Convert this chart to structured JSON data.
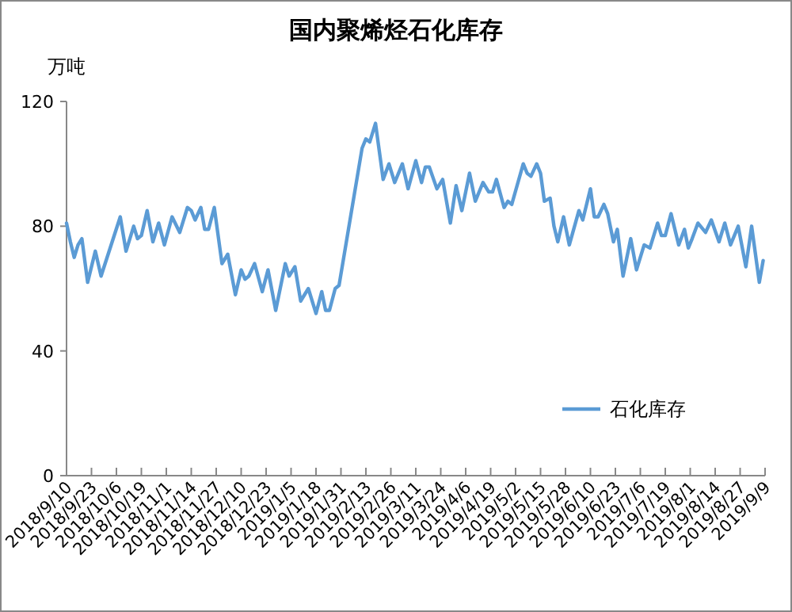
{
  "chart_data": {
    "type": "line",
    "title": "国内聚烯烃石化库存",
    "ylabel": "万吨",
    "legend": "bottom right",
    "xlim": [
      "2018-09-10",
      "2019-09-09"
    ],
    "xticks": [
      {
        "value": "2018-09-10",
        "label": "2018/9/10"
      },
      {
        "value": "2018-09-23",
        "label": "2018/9/23"
      },
      {
        "value": "2018-10-06",
        "label": "2018/10/6"
      },
      {
        "value": "2018-10-19",
        "label": "2018/10/19"
      },
      {
        "value": "2018-11-01",
        "label": "2018/11/1"
      },
      {
        "value": "2018-11-14",
        "label": "2018/11/14"
      },
      {
        "value": "2018-11-27",
        "label": "2018/11/27"
      },
      {
        "value": "2018-12-10",
        "label": "2018/12/10"
      },
      {
        "value": "2018-12-23",
        "label": "2018/12/23"
      },
      {
        "value": "2019-01-05",
        "label": "2019/1/5"
      },
      {
        "value": "2019-01-18",
        "label": "2019/1/18"
      },
      {
        "value": "2019-01-31",
        "label": "2019/1/31"
      },
      {
        "value": "2019-02-13",
        "label": "2019/2/13"
      },
      {
        "value": "2019-02-26",
        "label": "2019/2/26"
      },
      {
        "value": "2019-03-11",
        "label": "2019/3/11"
      },
      {
        "value": "2019-03-24",
        "label": "2019/3/24"
      },
      {
        "value": "2019-04-06",
        "label": "2019/4/6"
      },
      {
        "value": "2019-04-19",
        "label": "2019/4/19"
      },
      {
        "value": "2019-05-02",
        "label": "2019/5/2"
      },
      {
        "value": "2019-05-15",
        "label": "2019/5/15"
      },
      {
        "value": "2019-05-28",
        "label": "2019/5/28"
      },
      {
        "value": "2019-06-10",
        "label": "2019/6/10"
      },
      {
        "value": "2019-06-23",
        "label": "2019/6/23"
      },
      {
        "value": "2019-07-06",
        "label": "2019/7/6"
      },
      {
        "value": "2019-07-19",
        "label": "2019/7/19"
      },
      {
        "value": "2019-08-01",
        "label": "2019/8/1"
      },
      {
        "value": "2019-08-14",
        "label": "2019/8/14"
      },
      {
        "value": "2019-08-27",
        "label": "2019/8/27"
      },
      {
        "value": "2019-09-09",
        "label": "2019/9/9"
      }
    ],
    "ylim": [
      0,
      120
    ],
    "yticks": [
      0,
      40,
      80,
      120
    ],
    "series": [
      {
        "name": "石化库存",
        "color": "#5b9bd5",
        "x": [
          "2018-09-10",
          "2018-09-12",
          "2018-09-14",
          "2018-09-16",
          "2018-09-18",
          "2018-09-21",
          "2018-09-25",
          "2018-09-28",
          "2018-10-08",
          "2018-10-11",
          "2018-10-15",
          "2018-10-17",
          "2018-10-19",
          "2018-10-22",
          "2018-10-25",
          "2018-10-28",
          "2018-10-31",
          "2018-11-04",
          "2018-11-08",
          "2018-11-12",
          "2018-11-14",
          "2018-11-16",
          "2018-11-19",
          "2018-11-21",
          "2018-11-23",
          "2018-11-26",
          "2018-11-30",
          "2018-12-03",
          "2018-12-07",
          "2018-12-10",
          "2018-12-12",
          "2018-12-14",
          "2018-12-17",
          "2018-12-21",
          "2018-12-24",
          "2018-12-28",
          "2019-01-02",
          "2019-01-04",
          "2019-01-07",
          "2019-01-10",
          "2019-01-14",
          "2019-01-18",
          "2019-01-21",
          "2019-01-23",
          "2019-01-25",
          "2019-01-28",
          "2019-01-30",
          "2019-02-11",
          "2019-02-13",
          "2019-02-15",
          "2019-02-18",
          "2019-02-22",
          "2019-02-25",
          "2019-02-28",
          "2019-03-04",
          "2019-03-07",
          "2019-03-11",
          "2019-03-14",
          "2019-03-16",
          "2019-03-18",
          "2019-03-22",
          "2019-03-25",
          "2019-03-29",
          "2019-04-01",
          "2019-04-04",
          "2019-04-08",
          "2019-04-11",
          "2019-04-15",
          "2019-04-18",
          "2019-04-20",
          "2019-04-22",
          "2019-04-26",
          "2019-04-28",
          "2019-04-30",
          "2019-05-06",
          "2019-05-08",
          "2019-05-10",
          "2019-05-13",
          "2019-05-15",
          "2019-05-17",
          "2019-05-20",
          "2019-05-22",
          "2019-05-24",
          "2019-05-27",
          "2019-05-30",
          "2019-06-04",
          "2019-06-06",
          "2019-06-10",
          "2019-06-12",
          "2019-06-14",
          "2019-06-17",
          "2019-06-19",
          "2019-06-22",
          "2019-06-24",
          "2019-06-27",
          "2019-07-01",
          "2019-07-04",
          "2019-07-08",
          "2019-07-11",
          "2019-07-15",
          "2019-07-17",
          "2019-07-19",
          "2019-07-22",
          "2019-07-26",
          "2019-07-29",
          "2019-07-31",
          "2019-08-02",
          "2019-08-05",
          "2019-08-09",
          "2019-08-12",
          "2019-08-16",
          "2019-08-19",
          "2019-08-22",
          "2019-08-26",
          "2019-08-30",
          "2019-09-02",
          "2019-09-06",
          "2019-09-08"
        ],
        "values": [
          81,
          75,
          70,
          74,
          76,
          62,
          72,
          64,
          83,
          72,
          80,
          76,
          77,
          85,
          75,
          81,
          74,
          83,
          78,
          86,
          85,
          82,
          86,
          79,
          79,
          86,
          68,
          71,
          58,
          66,
          63,
          64,
          68,
          59,
          66,
          53,
          68,
          64,
          67,
          56,
          60,
          52,
          59,
          53,
          53,
          60,
          61,
          105,
          108,
          107,
          113,
          95,
          100,
          94,
          100,
          92,
          101,
          94,
          99,
          99,
          92,
          95,
          81,
          93,
          85,
          97,
          88,
          94,
          91,
          91,
          95,
          86,
          88,
          87,
          100,
          97,
          96,
          100,
          97,
          88,
          89,
          80,
          75,
          83,
          74,
          85,
          82,
          92,
          83,
          83,
          87,
          84,
          75,
          79,
          64,
          76,
          66,
          74,
          73,
          81,
          77,
          77,
          84,
          74,
          79,
          73,
          76,
          81,
          78,
          82,
          75,
          81,
          74,
          80,
          67,
          80,
          62,
          69
        ]
      }
    ]
  }
}
